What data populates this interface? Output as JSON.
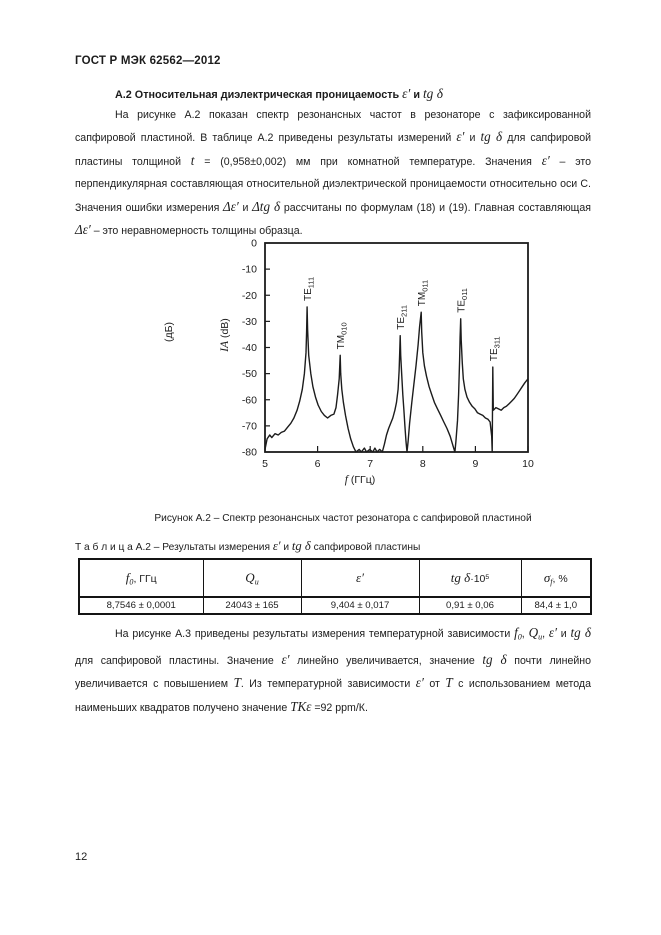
{
  "doc": {
    "header": "ГОСТ Р МЭК 62562—2012",
    "page_number": "12"
  },
  "heading_segments": [
    {
      "t": "А.2  Относительная диэлектрическая проницаемость "
    },
    {
      "t": "ε′",
      "m": true
    },
    {
      "t": " и "
    },
    {
      "t": "tg δ",
      "m": true
    }
  ],
  "paragraph1_segments": [
    {
      "t": "На рисунке А.2 показан спектр  резонансных частот в резонаторе с зафиксированной сапфировой пластиной. В таблице А.2 приведены результаты измерений "
    },
    {
      "t": "ε′",
      "m": true
    },
    {
      "t": " и "
    },
    {
      "t": "tg δ",
      "m": true
    },
    {
      "t": " для сапфировой пластины толщиной "
    },
    {
      "t": "t",
      "m": true
    },
    {
      "t": " = (0,958±0,002) мм при комнатной температуре. Значения "
    },
    {
      "t": "ε′",
      "m": true
    },
    {
      "t": " – это перпендикулярная составляющая относительной диэлектрической проницаемости относительно оси С. Значения ошибки измерения "
    },
    {
      "t": "Δε′",
      "m": true
    },
    {
      "t": " и "
    },
    {
      "t": "Δtg δ",
      "m": true
    },
    {
      "t": " рассчитаны по формулам (18) и (19). Главная составляющая "
    },
    {
      "t": "Δε′",
      "m": true
    },
    {
      "t": " – это неравномерность толщины образца."
    }
  ],
  "figure": {
    "caption": "Рисунок А.2 – Спектр резонансных частот резонатора с сапфировой  пластиной"
  },
  "table": {
    "title_segments": [
      {
        "t": "Т а б л и ц а  А.2 – Результаты измерения "
      },
      {
        "t": "ε′",
        "m": true
      },
      {
        "t": " и "
      },
      {
        "t": "tg δ",
        "m": true
      },
      {
        "t": " сапфировой пластины"
      }
    ],
    "headers": [
      [
        {
          "t": "f",
          "m": true,
          "sub": "0"
        },
        {
          "t": ", ГГц"
        }
      ],
      [
        {
          "t": "Q",
          "m": true,
          "sub": "u"
        }
      ],
      [
        {
          "t": "ε′",
          "m": true
        }
      ],
      [
        {
          "t": "tg δ",
          "m": true
        },
        {
          "t": "·10",
          "sup": "5"
        }
      ],
      [
        {
          "t": "σ",
          "m": true,
          "sub": "f"
        },
        {
          "t": ", %"
        }
      ]
    ],
    "row": [
      "8,7546 ± 0,0001",
      "24043 ± 165",
      "9,404 ± 0,017",
      "0,91 ± 0,06",
      "84,4 ± 1,0"
    ]
  },
  "paragraph2_segments": [
    {
      "t": "На рисунке А.3 приведены  результаты измерения температурной зависимости "
    },
    {
      "t": "f",
      "m": true,
      "sub": "0"
    },
    {
      "t": ", "
    },
    {
      "t": "Q",
      "m": true,
      "sub": "u"
    },
    {
      "t": ", "
    },
    {
      "t": "ε′",
      "m": true
    },
    {
      "t": " и "
    },
    {
      "t": "tg δ",
      "m": true
    },
    {
      "t": " для сапфировой пластины. Значение "
    },
    {
      "t": "ε′",
      "m": true
    },
    {
      "t": " линейно увеличивается, значение "
    },
    {
      "t": "tg δ",
      "m": true
    },
    {
      "t": " почти линейно увеличивается с повышением "
    },
    {
      "t": "T",
      "m": true
    },
    {
      "t": ". Из температурной зависимости "
    },
    {
      "t": "ε′",
      "m": true
    },
    {
      "t": " от "
    },
    {
      "t": "T",
      "m": true
    },
    {
      "t": " с использованием метода наименьших квадратов получено значение "
    },
    {
      "t": "ТКε",
      "m": true
    },
    {
      "t": " =92 ppm/К."
    }
  ],
  "chart_data": {
    "type": "line",
    "xlabel_symbol": "f",
    "xlabel_unit": " (ГГц)",
    "ylabel_ru": "(дБ)",
    "ylabel_symbol": "IA",
    "ylabel_unit": " (dB)",
    "xlim": [
      5,
      10
    ],
    "ylim": [
      -80,
      0
    ],
    "x_ticks": [
      "5",
      "6",
      "7",
      "8",
      "9",
      "10"
    ],
    "y_ticks": [
      "0",
      "-10",
      "-20",
      "-30",
      "-40",
      "-50",
      "-60",
      "-70",
      "-80"
    ],
    "grid": false,
    "peaks": [
      {
        "mode": "TE",
        "sub": "111",
        "f": 5.8,
        "peak_db": -24.5
      },
      {
        "mode": "TM",
        "sub": "010",
        "f": 6.43,
        "peak_db": -43.0
      },
      {
        "mode": "TE",
        "sub": "211",
        "f": 7.57,
        "peak_db": -35.5
      },
      {
        "mode": "TM",
        "sub": "011",
        "f": 7.97,
        "peak_db": -26.5
      },
      {
        "mode": "TE",
        "sub": "011",
        "f": 8.72,
        "peak_db": -29.0
      },
      {
        "mode": "TE",
        "sub": "311",
        "f": 9.33,
        "peak_db": -47.5
      }
    ],
    "curve": [
      [
        5.0,
        -79
      ],
      [
        5.04,
        -75
      ],
      [
        5.09,
        -73.5
      ],
      [
        5.13,
        -74.5
      ],
      [
        5.19,
        -73
      ],
      [
        5.25,
        -73.5
      ],
      [
        5.31,
        -72.5
      ],
      [
        5.37,
        -72
      ],
      [
        5.43,
        -70.5
      ],
      [
        5.49,
        -69
      ],
      [
        5.55,
        -67
      ],
      [
        5.61,
        -64
      ],
      [
        5.66,
        -60.5
      ],
      [
        5.71,
        -56
      ],
      [
        5.75,
        -50
      ],
      [
        5.78,
        -42
      ],
      [
        5.79,
        -34
      ],
      [
        5.8,
        -24.5
      ],
      [
        5.81,
        -33
      ],
      [
        5.83,
        -43
      ],
      [
        5.87,
        -50
      ],
      [
        5.91,
        -55
      ],
      [
        5.96,
        -59
      ],
      [
        6.01,
        -62
      ],
      [
        6.07,
        -64.5
      ],
      [
        6.13,
        -66
      ],
      [
        6.19,
        -67
      ],
      [
        6.25,
        -66
      ],
      [
        6.31,
        -65.5
      ],
      [
        6.35,
        -63
      ],
      [
        6.38,
        -58
      ],
      [
        6.41,
        -52
      ],
      [
        6.43,
        -43
      ],
      [
        6.44,
        -50
      ],
      [
        6.46,
        -56
      ],
      [
        6.49,
        -61
      ],
      [
        6.53,
        -66
      ],
      [
        6.58,
        -71
      ],
      [
        6.63,
        -75
      ],
      [
        6.68,
        -78
      ],
      [
        6.73,
        -80
      ],
      [
        6.79,
        -79
      ],
      [
        6.83,
        -80
      ],
      [
        6.89,
        -78.5
      ],
      [
        6.93,
        -80
      ],
      [
        6.99,
        -79
      ],
      [
        7.05,
        -80
      ],
      [
        7.09,
        -78.5
      ],
      [
        7.13,
        -80
      ],
      [
        7.18,
        -79
      ],
      [
        7.23,
        -80
      ],
      [
        7.27,
        -77
      ],
      [
        7.31,
        -73.5
      ],
      [
        7.35,
        -71
      ],
      [
        7.39,
        -69
      ],
      [
        7.43,
        -67
      ],
      [
        7.47,
        -64
      ],
      [
        7.5,
        -61
      ],
      [
        7.53,
        -56
      ],
      [
        7.55,
        -49
      ],
      [
        7.56,
        -42
      ],
      [
        7.57,
        -35.5
      ],
      [
        7.58,
        -43
      ],
      [
        7.6,
        -51
      ],
      [
        7.62,
        -58
      ],
      [
        7.64,
        -64
      ],
      [
        7.66,
        -70
      ],
      [
        7.68,
        -76
      ],
      [
        7.7,
        -80
      ],
      [
        7.72,
        -76
      ],
      [
        7.75,
        -69
      ],
      [
        7.79,
        -61
      ],
      [
        7.83,
        -54
      ],
      [
        7.87,
        -47
      ],
      [
        7.91,
        -39
      ],
      [
        7.94,
        -32
      ],
      [
        7.97,
        -26.5
      ],
      [
        7.98,
        -34
      ],
      [
        8.0,
        -42
      ],
      [
        8.03,
        -47
      ],
      [
        8.07,
        -51
      ],
      [
        8.12,
        -55
      ],
      [
        8.17,
        -58
      ],
      [
        8.22,
        -61
      ],
      [
        8.28,
        -63.5
      ],
      [
        8.34,
        -66
      ],
      [
        8.4,
        -68.5
      ],
      [
        8.46,
        -71
      ],
      [
        8.52,
        -74
      ],
      [
        8.58,
        -78
      ],
      [
        8.61,
        -80
      ],
      [
        8.63,
        -76
      ],
      [
        8.66,
        -68
      ],
      [
        8.68,
        -58
      ],
      [
        8.7,
        -45
      ],
      [
        8.71,
        -36
      ],
      [
        8.72,
        -29
      ],
      [
        8.73,
        -37
      ],
      [
        8.75,
        -46
      ],
      [
        8.77,
        -52
      ],
      [
        8.8,
        -56
      ],
      [
        8.84,
        -59
      ],
      [
        8.89,
        -61
      ],
      [
        8.94,
        -62.5
      ],
      [
        8.99,
        -63.5
      ],
      [
        9.04,
        -65
      ],
      [
        9.09,
        -65.5
      ],
      [
        9.14,
        -66
      ],
      [
        9.19,
        -67
      ],
      [
        9.24,
        -67.5
      ],
      [
        9.28,
        -68.5
      ],
      [
        9.31,
        -74
      ],
      [
        9.32,
        -80
      ],
      [
        9.33,
        -47.5
      ],
      [
        9.34,
        -64
      ],
      [
        9.39,
        -63
      ],
      [
        9.44,
        -63.5
      ],
      [
        9.49,
        -64
      ],
      [
        9.54,
        -63
      ],
      [
        9.59,
        -62.5
      ],
      [
        9.64,
        -61.5
      ],
      [
        9.69,
        -60.5
      ],
      [
        9.74,
        -59.5
      ],
      [
        9.79,
        -58
      ],
      [
        9.84,
        -56.5
      ],
      [
        9.89,
        -55
      ],
      [
        9.94,
        -53.5
      ],
      [
        10.0,
        -52
      ]
    ]
  }
}
